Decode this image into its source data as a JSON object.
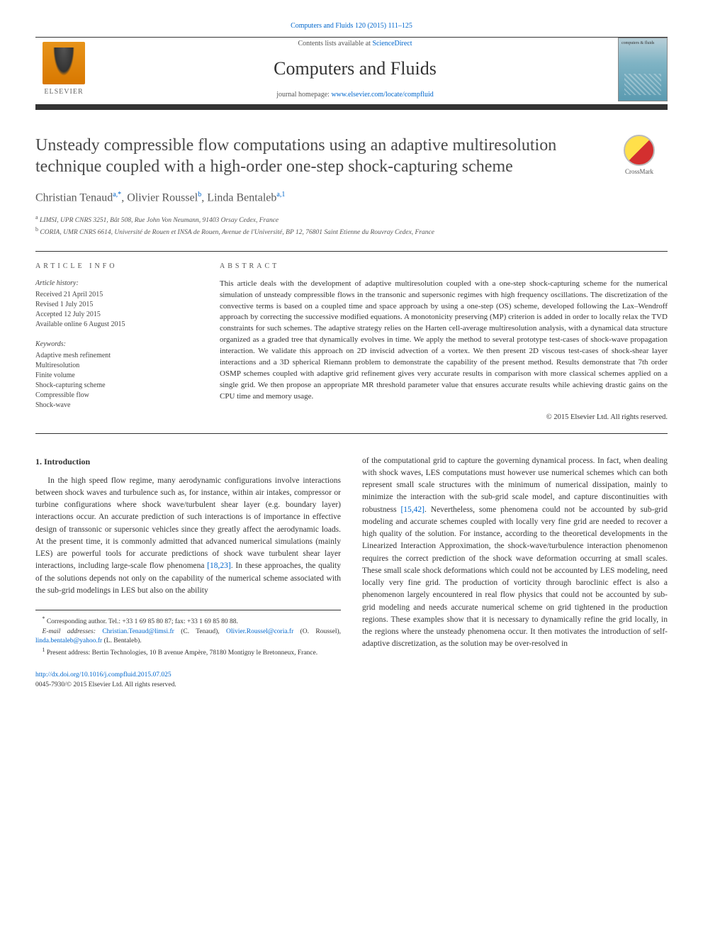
{
  "header": {
    "top_link": "Computers and Fluids 120 (2015) 111–125",
    "contents_prefix": "Contents lists available at ",
    "contents_link": "ScienceDirect",
    "journal_name": "Computers and Fluids",
    "homepage_prefix": "journal homepage: ",
    "homepage_url": "www.elsevier.com/locate/compfluid",
    "elsevier_label": "ELSEVIER",
    "cover_small_text": "computers & fluids"
  },
  "crossmark_label": "CrossMark",
  "title": "Unsteady compressible flow computations using an adaptive multiresolution technique coupled with a high-order one-step shock-capturing scheme",
  "authors": {
    "a1_name": "Christian Tenaud",
    "a1_sup": "a,*",
    "a2_name": "Olivier Roussel",
    "a2_sup": "b",
    "a3_name": "Linda Bentaleb",
    "a3_sup": "a,1"
  },
  "affiliations": {
    "a": "LIMSI, UPR CNRS 3251, Bât 508, Rue John Von Neumann, 91403 Orsay Cedex, France",
    "b": "CORIA, UMR CNRS 6614, Université de Rouen et INSA de Rouen, Avenue de l'Université, BP 12, 76801 Saint Etienne du Rouvray Cedex, France"
  },
  "meta": {
    "info_label": "article info",
    "abstract_label": "abstract",
    "history_head": "Article history:",
    "received": "Received 21 April 2015",
    "revised": "Revised 1 July 2015",
    "accepted": "Accepted 12 July 2015",
    "online": "Available online 6 August 2015",
    "keywords_head": "Keywords:",
    "keywords": [
      "Adaptive mesh refinement",
      "Multiresolution",
      "Finite volume",
      "Shock-capturing scheme",
      "Compressible flow",
      "Shock-wave"
    ]
  },
  "abstract_text": "This article deals with the development of adaptive multiresolution coupled with a one-step shock-capturing scheme for the numerical simulation of unsteady compressible flows in the transonic and supersonic regimes with high frequency oscillations. The discretization of the convective terms is based on a coupled time and space approach by using a one-step (OS) scheme, developed following the Lax–Wendroff approach by correcting the successive modified equations. A monotonicity preserving (MP) criterion is added in order to locally relax the TVD constraints for such schemes. The adaptive strategy relies on the Harten cell-average multiresolution analysis, with a dynamical data structure organized as a graded tree that dynamically evolves in time. We apply the method to several prototype test-cases of shock-wave propagation interaction. We validate this approach on 2D inviscid advection of a vortex. We then present 2D viscous test-cases of shock-shear layer interactions and a 3D spherical Riemann problem to demonstrate the capability of the present method. Results demonstrate that 7th order OSMP schemes coupled with adaptive grid refinement gives very accurate results in comparison with more classical schemes applied on a single grid. We then propose an appropriate MR threshold parameter value that ensures accurate results while achieving drastic gains on the CPU time and memory usage.",
  "copyright": "© 2015 Elsevier Ltd. All rights reserved.",
  "body": {
    "heading": "1. Introduction",
    "col1_p1a": "In the high speed flow regime, many aerodynamic configurations involve interactions between shock waves and turbulence such as, for instance, within air intakes, compressor or turbine configurations where shock wave/turbulent shear layer (e.g. boundary layer) interactions occur. An accurate prediction of such interactions is of importance in effective design of transsonic or supersonic vehicles since they greatly affect the aerodynamic loads. At the present time, it is commonly admitted that advanced numerical simulations (mainly LES) are powerful tools for accurate predictions of shock wave turbulent shear layer interactions, including large-scale flow phenomena ",
    "ref1": "[18,23]",
    "col1_p1b": ". In these approaches, the quality of the solutions depends not only on the capability of the numerical scheme associated with the sub-grid modelings in LES but also on the ability",
    "col2_p1a": "of the computational grid to capture the governing dynamical process. In fact, when dealing with shock waves, LES computations must however use numerical schemes which can both represent small scale structures with the minimum of numerical dissipation, mainly to minimize the interaction with the sub-grid scale model, and capture discontinuities with robustness ",
    "ref2": "[15,42]",
    "col2_p1b": ". Nevertheless, some phenomena could not be accounted by sub-grid modeling and accurate schemes coupled with locally very fine grid are needed to recover a high quality of the solution. For instance, according to the theoretical developments in the Linearized Interaction Approximation, the shock-wave/turbulence interaction phenomenon requires the correct prediction of the shock wave deformation occurring at small scales. These small scale shock deformations which could not be accounted by LES modeling, need locally very fine grid. The production of vorticity through baroclinic effect is also a phenomenon largely encountered in real flow physics that could not be accounted by sub-grid modeling and needs accurate numerical scheme on grid tightened in the production regions. These examples show that it is necessary to dynamically refine the grid locally, in the regions where the unsteady phenomena occur. It then motivates the introduction of self-adaptive discretization, as the solution may be over-resolved in"
  },
  "footnotes": {
    "corr": "Corresponding author. Tel.: +33 1 69 85 80 87; fax: +33 1 69 85 80 88.",
    "email_label": "E-mail addresses: ",
    "email1": "Christian.Tenaud@limsi.fr",
    "email1_who": " (C. Tenaud), ",
    "email2": "Olivier.Roussel@coria.fr",
    "email2_who": " (O. Roussel), ",
    "email3": "linda.bentaleb@yahoo.fr",
    "email3_who": " (L. Bentaleb).",
    "present": "Present address: Bertin Technologies, 10 B avenue Ampère, 78180 Montigny le Bretonneux, France."
  },
  "doi": {
    "url": "http://dx.doi.org/10.1016/j.compfluid.2015.07.025",
    "issn_line": "0045-7930/© 2015 Elsevier Ltd. All rights reserved."
  }
}
